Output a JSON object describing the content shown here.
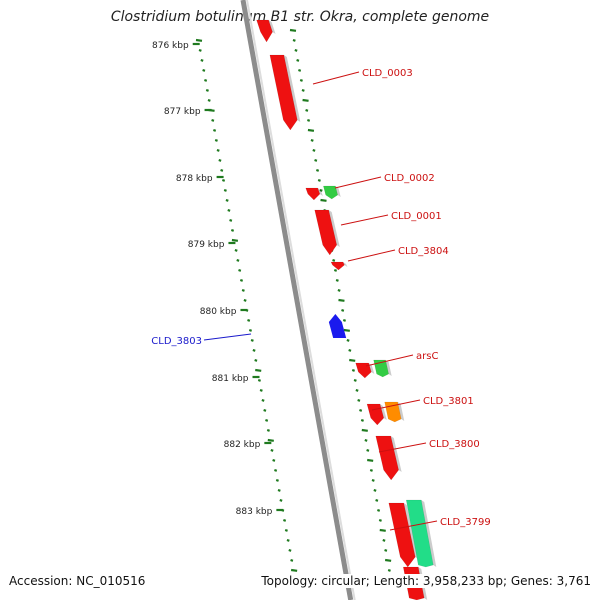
{
  "title": "Clostridium botulinum B1 str. Okra, complete genome",
  "accession_text": "Accession: NC_010516",
  "summary_text": "Topology: circular; Length: 3,958,233 bp; Genes: 3,761",
  "kbp_labels": [
    "876 kbp",
    "877 kbp",
    "878 kbp",
    "879 kbp",
    "880 kbp",
    "881 kbp",
    "882 kbp",
    "883 kbp"
  ],
  "colors": {
    "backbone": "#8c8c8c",
    "tick": "#1f7a1f",
    "gene_forward": "#ee1111",
    "gene_reverse": "#1a1aee",
    "gene_green": "#33cc44",
    "gene_orange": "#ff8c00",
    "gene_teal": "#22dd88",
    "label_forward": "#cc1111",
    "label_reverse": "#1a1acc"
  },
  "genes": [
    {
      "label": "CLD_0003",
      "strand": "forward"
    },
    {
      "label": "CLD_0002",
      "strand": "forward"
    },
    {
      "label": "CLD_0001",
      "strand": "forward"
    },
    {
      "label": "CLD_3804",
      "strand": "forward"
    },
    {
      "label": "CLD_3803",
      "strand": "reverse"
    },
    {
      "label": "arsC",
      "strand": "forward"
    },
    {
      "label": "CLD_3801",
      "strand": "forward"
    },
    {
      "label": "CLD_3800",
      "strand": "forward"
    },
    {
      "label": "CLD_3799",
      "strand": "forward"
    }
  ]
}
